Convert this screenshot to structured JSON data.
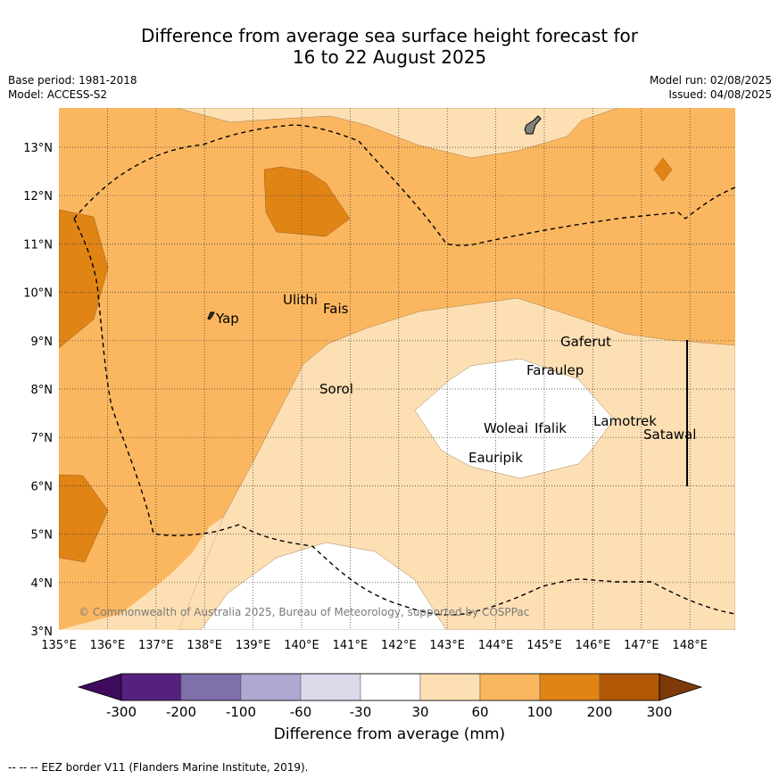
{
  "header": {
    "title_line1": "Difference from average sea surface height forecast for",
    "title_line2": "16 to 22 August 2025",
    "base_period": "Base period: 1981-2018",
    "model": "Model: ACCESS-S2",
    "model_run": "Model run: 02/08/2025",
    "issued": "Issued: 04/08/2025"
  },
  "map": {
    "lon_ticks": [
      "135°E",
      "136°E",
      "137°E",
      "138°E",
      "139°E",
      "140°E",
      "141°E",
      "142°E",
      "143°E",
      "144°E",
      "145°E",
      "146°E",
      "147°E",
      "148°E"
    ],
    "lat_ticks": [
      "13°N",
      "12°N",
      "11°N",
      "10°N",
      "9°N",
      "8°N",
      "7°N",
      "6°N",
      "5°N",
      "4°N",
      "3°N"
    ],
    "places": [
      {
        "name": "Yap"
      },
      {
        "name": "Ulithi"
      },
      {
        "name": "Fais"
      },
      {
        "name": "Gaferut"
      },
      {
        "name": "Faraulep"
      },
      {
        "name": "Sorol"
      },
      {
        "name": "Woleai"
      },
      {
        "name": "Ifalik"
      },
      {
        "name": "Lamotrek"
      },
      {
        "name": "Satawal"
      },
      {
        "name": "Eauripik"
      }
    ],
    "copyright": "© Commonwealth of Australia 2025, Bureau of Meteorology, supported by COSPPac"
  },
  "colorbar": {
    "labels": [
      "-300",
      "-200",
      "-100",
      "-60",
      "-30",
      "30",
      "60",
      "100",
      "200",
      "300"
    ],
    "colors": [
      "#3d0a5c",
      "#55217f",
      "#7f70ab",
      "#b0a8d2",
      "#dadaeb",
      "#ffffff",
      "#fddfb4",
      "#fbb760",
      "#e08415",
      "#b05806",
      "#7b3a08"
    ],
    "title": "Difference from average (mm)"
  },
  "footer": {
    "eez_note": "-- -- -- EEZ border V11 (Flanders Marine Institute, 2019)."
  }
}
